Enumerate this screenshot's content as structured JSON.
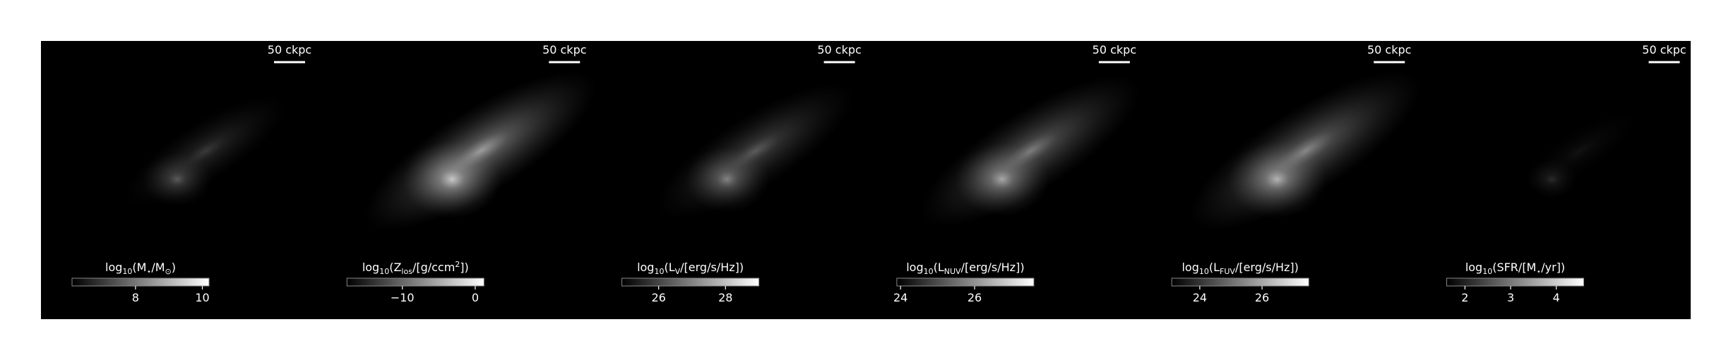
{
  "chart_data": [
    {
      "type": "image",
      "scale_bar": "50 ckpc",
      "colorbar": {
        "label": [
          {
            "text": "log"
          },
          {
            "text": "10",
            "shift": "sub"
          },
          {
            "text": "(M"
          },
          {
            "text": "⋆",
            "shift": "sub"
          },
          {
            "text": "/M"
          },
          {
            "text": "⊙",
            "shift": "sub"
          },
          {
            "text": ")"
          }
        ],
        "clim": [
          6.1,
          10.2
        ],
        "ticks": [
          8,
          10
        ]
      }
    },
    {
      "type": "image",
      "scale_bar": "50 ckpc",
      "colorbar": {
        "label": [
          {
            "text": "log"
          },
          {
            "text": "10",
            "shift": "sub"
          },
          {
            "text": "(Z"
          },
          {
            "text": "los",
            "shift": "sub"
          },
          {
            "text": "/[g/ccm"
          },
          {
            "text": "2",
            "shift": "sup"
          },
          {
            "text": "])"
          }
        ],
        "clim": [
          -17.6,
          1.2
        ],
        "ticks": [
          {
            "value": -10,
            "label": "−10"
          },
          0
        ]
      }
    },
    {
      "type": "image",
      "scale_bar": "50 ckpc",
      "colorbar": {
        "label": [
          {
            "text": "log"
          },
          {
            "text": "10",
            "shift": "sub"
          },
          {
            "text": "(L"
          },
          {
            "text": "V",
            "shift": "sub"
          },
          {
            "text": "/[erg/s/Hz])"
          }
        ],
        "clim": [
          24.9,
          29.0
        ],
        "ticks": [
          26,
          28
        ]
      }
    },
    {
      "type": "image",
      "scale_bar": "50 ckpc",
      "colorbar": {
        "label": [
          {
            "text": "log"
          },
          {
            "text": "10",
            "shift": "sub"
          },
          {
            "text": "(L"
          },
          {
            "text": "NUV",
            "shift": "sub"
          },
          {
            "text": "/[erg/s/Hz])"
          }
        ],
        "clim": [
          23.9,
          27.6
        ],
        "ticks": [
          24,
          26
        ]
      }
    },
    {
      "type": "image",
      "scale_bar": "50 ckpc",
      "colorbar": {
        "label": [
          {
            "text": "log"
          },
          {
            "text": "10",
            "shift": "sub"
          },
          {
            "text": "(L"
          },
          {
            "text": "FUV",
            "shift": "sub"
          },
          {
            "text": "/[erg/s/Hz])"
          }
        ],
        "clim": [
          23.1,
          27.5
        ],
        "ticks": [
          24,
          26
        ]
      }
    },
    {
      "type": "image",
      "scale_bar": "50 ckpc",
      "colorbar": {
        "label": [
          {
            "text": "log"
          },
          {
            "text": "10",
            "shift": "sub"
          },
          {
            "text": "(SFR/[M"
          },
          {
            "text": "⋆",
            "shift": "sub"
          },
          {
            "text": "/yr])"
          }
        ],
        "clim": [
          1.6,
          4.6
        ],
        "ticks": [
          2,
          3,
          4
        ]
      }
    }
  ]
}
